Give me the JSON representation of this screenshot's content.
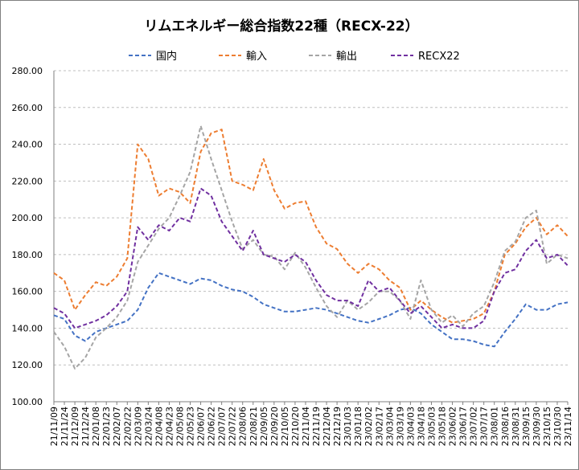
{
  "chart_data": {
    "type": "line",
    "title": "リムエネルギー総合指数22種（RECX-22）",
    "xlabel": "",
    "ylabel": "",
    "ylim": [
      100,
      280
    ],
    "yticks": [
      "100.00",
      "120.00",
      "140.00",
      "160.00",
      "180.00",
      "200.00",
      "220.00",
      "240.00",
      "260.00",
      "280.00"
    ],
    "grid": "horizontal dashed",
    "legend_position": "top",
    "categories": [
      "21/11/09",
      "21/11/24",
      "21/12/09",
      "21/12/24",
      "22/01/08",
      "22/01/23",
      "22/02/07",
      "22/02/22",
      "22/03/09",
      "22/03/24",
      "22/04/08",
      "22/04/23",
      "22/05/08",
      "22/05/23",
      "22/06/07",
      "22/06/22",
      "22/07/07",
      "22/07/22",
      "22/08/06",
      "22/08/21",
      "22/09/05",
      "22/09/20",
      "22/10/05",
      "22/10/20",
      "22/11/04",
      "22/11/19",
      "22/12/04",
      "22/12/19",
      "23/01/03",
      "23/01/18",
      "23/02/02",
      "23/02/17",
      "23/03/04",
      "23/03/19",
      "23/04/03",
      "23/04/18",
      "23/05/03",
      "23/05/18",
      "23/06/02",
      "23/06/17",
      "23/07/02",
      "23/07/17",
      "23/08/01",
      "23/08/16",
      "23/08/31",
      "23/09/15",
      "23/09/30",
      "23/10/15",
      "23/10/30",
      "23/11/14"
    ],
    "series": [
      {
        "name": "国内",
        "color": "#4472c4",
        "values": [
          147,
          145,
          136,
          133,
          138,
          140,
          142,
          144,
          150,
          162,
          170,
          168,
          166,
          164,
          167,
          166,
          163,
          161,
          160,
          157,
          153,
          151,
          149,
          149,
          150,
          151,
          150,
          148,
          146,
          144,
          143,
          145,
          147,
          150,
          151,
          148,
          142,
          138,
          134,
          134,
          133,
          131,
          130,
          138,
          145,
          153,
          150,
          150,
          153,
          154
        ]
      },
      {
        "name": "輸入",
        "color": "#ed7d31",
        "values": [
          170,
          166,
          150,
          158,
          165,
          163,
          168,
          178,
          240,
          232,
          212,
          216,
          214,
          208,
          236,
          246,
          248,
          220,
          218,
          215,
          232,
          215,
          205,
          208,
          209,
          195,
          186,
          183,
          175,
          170,
          175,
          172,
          166,
          162,
          150,
          155,
          150,
          146,
          143,
          144,
          145,
          148,
          160,
          180,
          186,
          195,
          200,
          191,
          196,
          190
        ]
      },
      {
        "name": "輸出",
        "color": "#a5a5a5",
        "values": [
          138,
          130,
          118,
          124,
          135,
          140,
          146,
          155,
          176,
          185,
          194,
          200,
          212,
          225,
          250,
          232,
          215,
          198,
          183,
          188,
          180,
          179,
          172,
          181,
          173,
          162,
          152,
          146,
          155,
          150,
          154,
          160,
          160,
          155,
          145,
          166,
          150,
          143,
          147,
          141,
          148,
          152,
          165,
          182,
          187,
          200,
          204,
          175,
          180,
          178
        ]
      },
      {
        "name": "RECX22",
        "color": "#7030a0",
        "values": [
          151,
          148,
          140,
          142,
          144,
          147,
          152,
          160,
          195,
          188,
          196,
          193,
          200,
          198,
          216,
          212,
          198,
          190,
          182,
          193,
          180,
          178,
          176,
          180,
          176,
          166,
          158,
          155,
          155,
          152,
          166,
          160,
          162,
          155,
          148,
          152,
          146,
          140,
          142,
          140,
          140,
          144,
          160,
          170,
          172,
          182,
          188,
          178,
          180,
          174
        ]
      }
    ]
  }
}
